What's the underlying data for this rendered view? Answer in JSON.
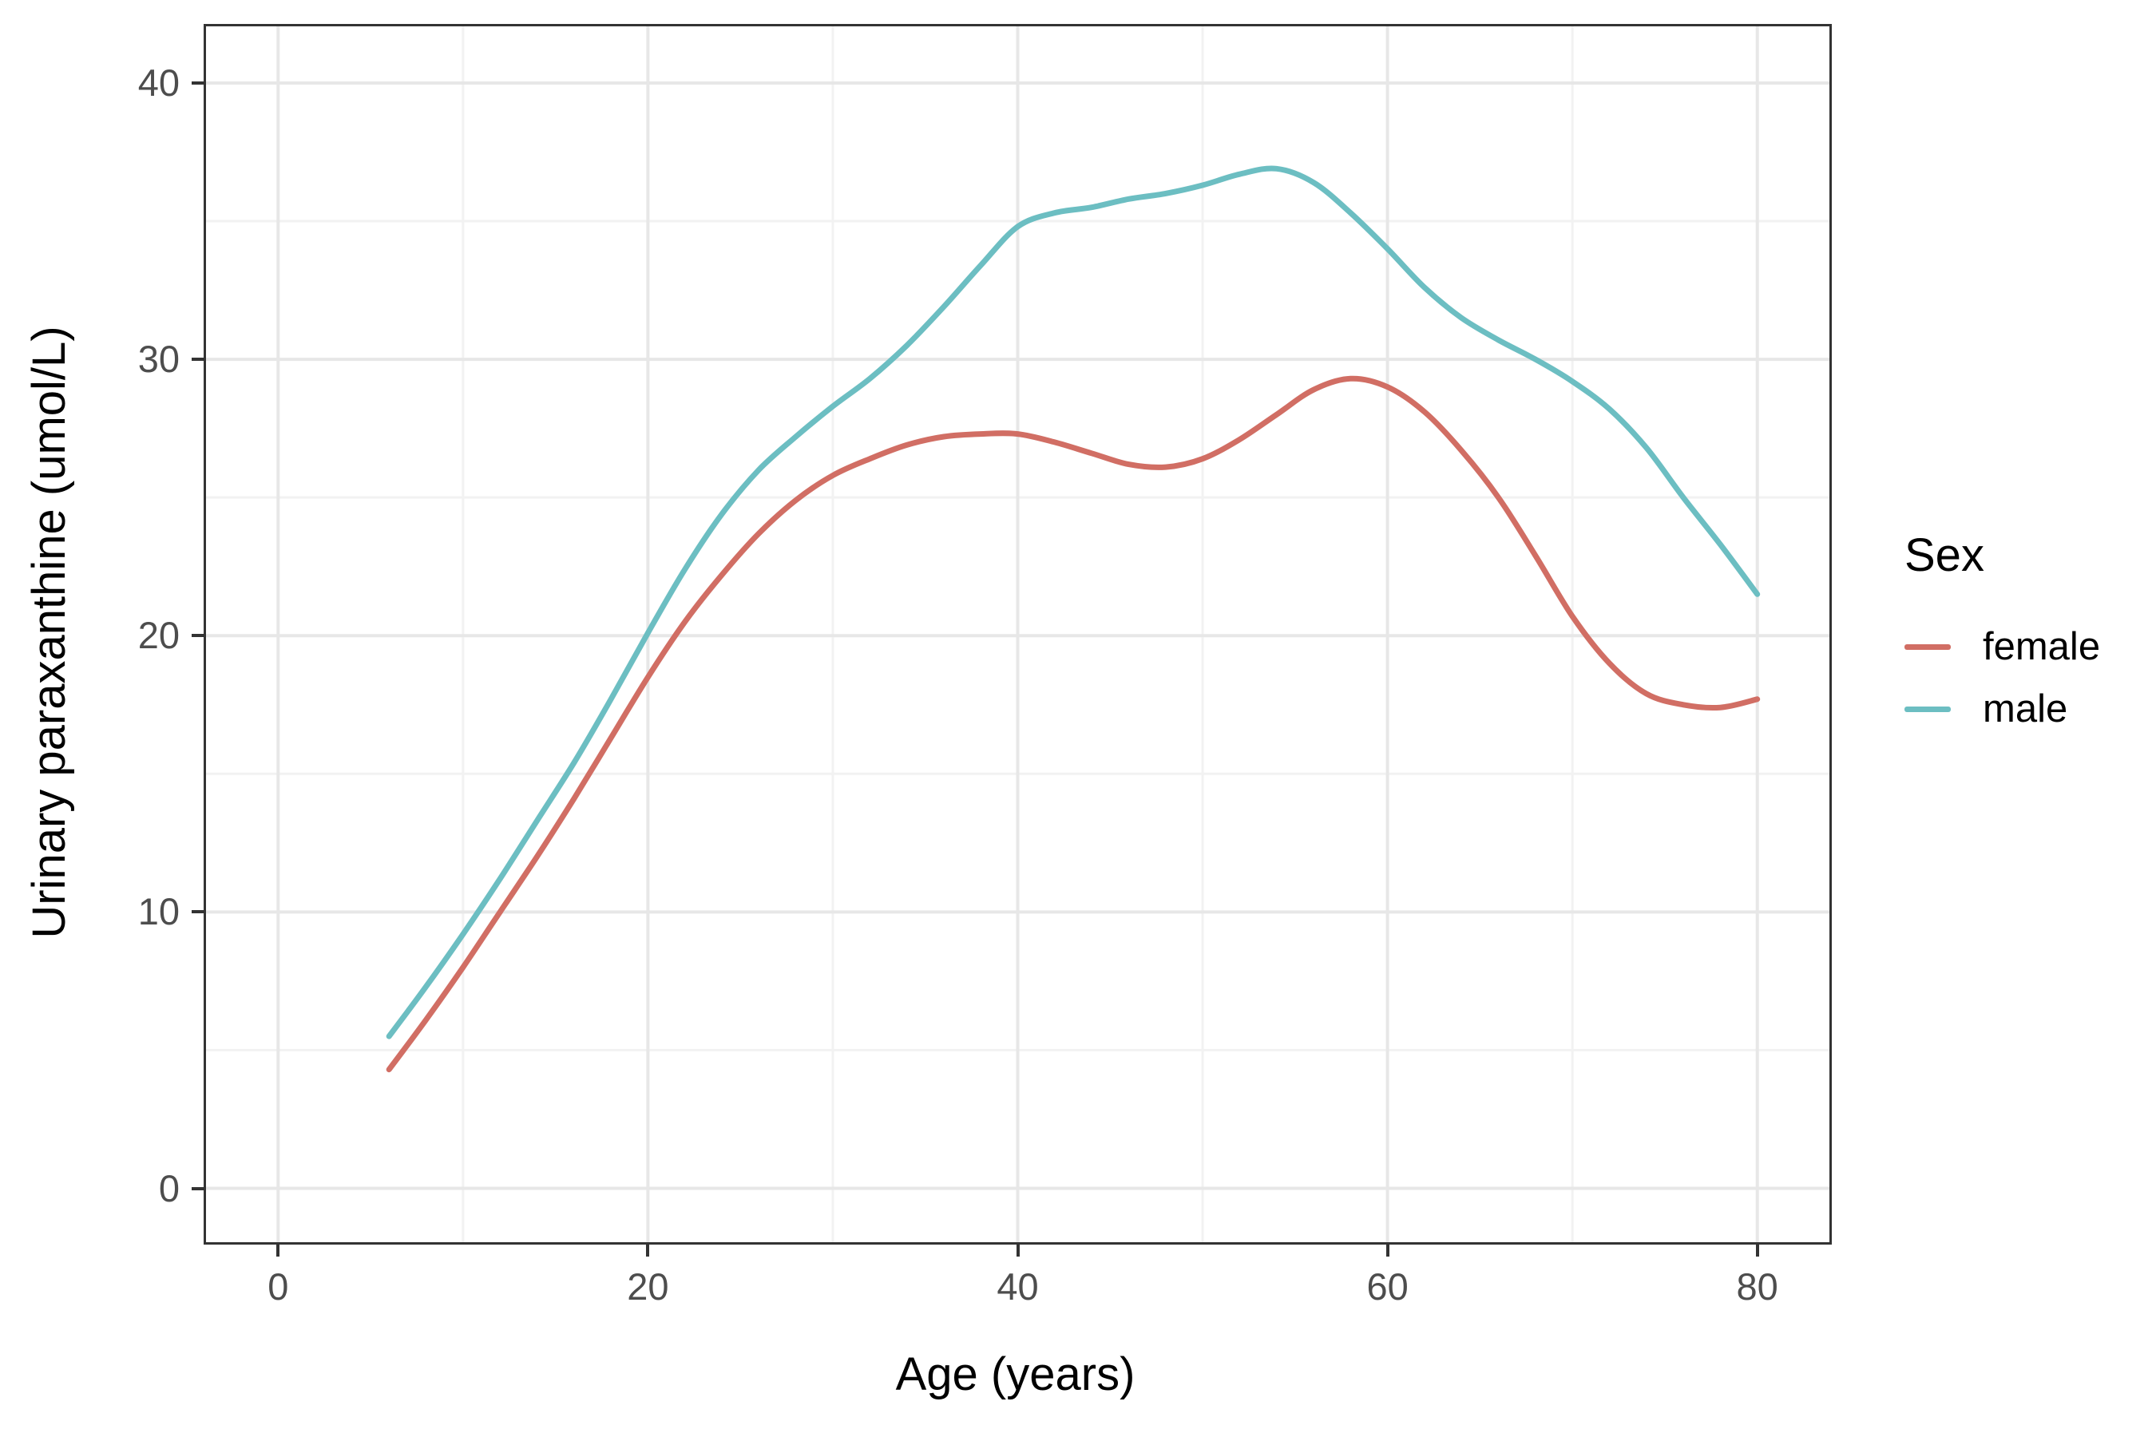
{
  "chart_data": {
    "type": "line",
    "title": "",
    "xlabel": "Age (years)",
    "ylabel": "Urinary paraxanthine (umol/L)",
    "legend_title": "Sex",
    "legend_position": "right",
    "grid": true,
    "x_ticks": [
      0,
      20,
      40,
      60,
      80
    ],
    "y_ticks": [
      0,
      10,
      20,
      30,
      40
    ],
    "x_minor_ticks": [
      10,
      30,
      50,
      70
    ],
    "y_minor_ticks": [
      5,
      15,
      25,
      35
    ],
    "x_domain": [
      -3.9,
      83.9
    ],
    "y_domain": [
      -1.95,
      42.05
    ],
    "xlim": [
      0,
      80
    ],
    "ylim": [
      0,
      40
    ],
    "x": [
      6,
      8,
      10,
      12,
      14,
      16,
      18,
      20,
      22,
      24,
      26,
      28,
      30,
      32,
      34,
      36,
      38,
      40,
      42,
      44,
      46,
      48,
      50,
      52,
      54,
      56,
      58,
      60,
      62,
      64,
      66,
      68,
      70,
      72,
      74,
      76,
      78,
      80
    ],
    "series": [
      {
        "name": "female",
        "color": "#d16e64",
        "values": [
          4.3,
          6.1,
          8.0,
          10.0,
          12.0,
          14.1,
          16.3,
          18.5,
          20.5,
          22.2,
          23.7,
          24.9,
          25.8,
          26.4,
          26.9,
          27.2,
          27.3,
          27.3,
          27.0,
          26.6,
          26.2,
          26.1,
          26.4,
          27.1,
          28.0,
          28.9,
          29.3,
          29.0,
          28.1,
          26.7,
          25.0,
          22.9,
          20.7,
          19.0,
          17.9,
          17.5,
          17.4,
          17.7
        ]
      },
      {
        "name": "male",
        "color": "#6cbec2",
        "values": [
          5.5,
          7.3,
          9.2,
          11.2,
          13.3,
          15.4,
          17.7,
          20.1,
          22.4,
          24.4,
          26.0,
          27.2,
          28.3,
          29.3,
          30.5,
          31.9,
          33.4,
          34.8,
          35.3,
          35.5,
          35.8,
          36.0,
          36.3,
          36.7,
          36.9,
          36.4,
          35.3,
          34.0,
          32.6,
          31.5,
          30.7,
          30.0,
          29.2,
          28.2,
          26.8,
          25.0,
          23.3,
          21.5
        ]
      }
    ],
    "colors": {
      "grid_major": "#e7e7e7",
      "grid_minor": "#f2f2f2",
      "panel_border": "#333333",
      "tick_label": "#4d4d4d",
      "axis_title": "#000000",
      "background": "#ffffff"
    }
  }
}
